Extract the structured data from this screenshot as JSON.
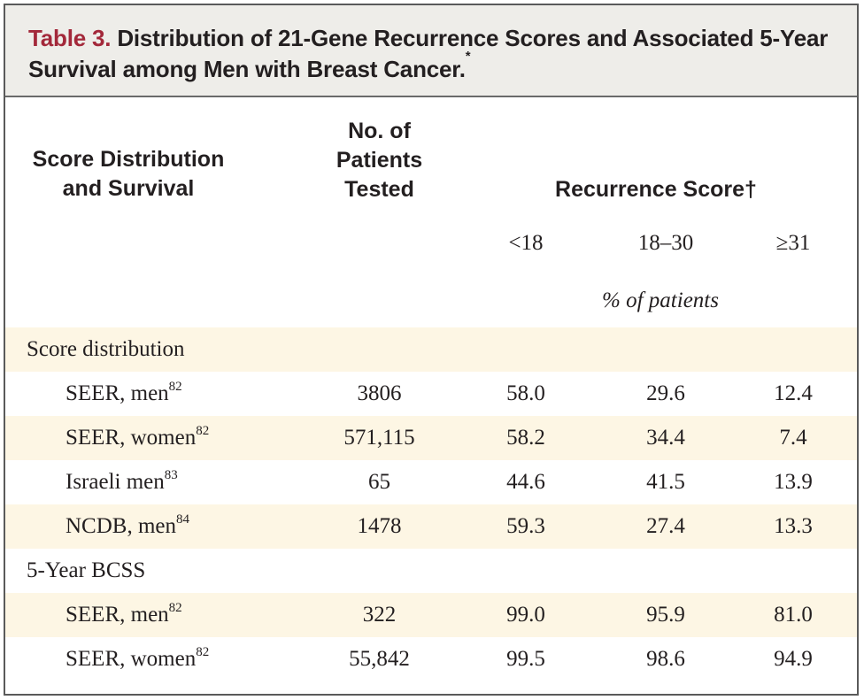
{
  "title": {
    "table_label": "Table 3.",
    "line1_rest": " Distribution of 21-Gene Recurrence Scores and Associated 5-Year",
    "line2": "Survival among Men with Breast Cancer.",
    "line2_mark": "*"
  },
  "header": {
    "col1_line1": "Score Distribution",
    "col1_line2": "and Survival",
    "col2_line1": "No. of",
    "col2_line2": "Patients",
    "col2_line3": "Tested",
    "recurrence_score": "Recurrence Score",
    "recurrence_score_mark": "†",
    "sub_lt18": "<18",
    "sub_mid": "18–30",
    "sub_ge31": "≥31",
    "pct_label": "% of patients"
  },
  "sections": [
    {
      "label": "Score distribution",
      "rows": [
        {
          "label": "SEER, men",
          "ref": "82",
          "n": "3806",
          "lt18": "58.0",
          "mid": "29.6",
          "ge31": "12.4"
        },
        {
          "label": "SEER, women",
          "ref": "82",
          "n": "571,115",
          "lt18": "58.2",
          "mid": "34.4",
          "ge31": "7.4"
        },
        {
          "label": "Israeli men",
          "ref": "83",
          "n": "65",
          "lt18": "44.6",
          "mid": "41.5",
          "ge31": "13.9"
        },
        {
          "label": "NCDB, men",
          "ref": "84",
          "n": "1478",
          "lt18": "59.3",
          "mid": "27.4",
          "ge31": "13.3"
        }
      ]
    },
    {
      "label": "5-Year BCSS",
      "rows": [
        {
          "label": "SEER, men",
          "ref": "82",
          "n": "322",
          "lt18": "99.0",
          "mid": "95.9",
          "ge31": "81.0"
        },
        {
          "label": "SEER, women",
          "ref": "82",
          "n": "55,842",
          "lt18": "99.5",
          "mid": "98.6",
          "ge31": "94.9"
        }
      ]
    }
  ],
  "colors": {
    "title_label": "#a3283a",
    "title_background": "#eeede9",
    "shaded_row": "#fdf6e4",
    "text": "#231f20"
  }
}
